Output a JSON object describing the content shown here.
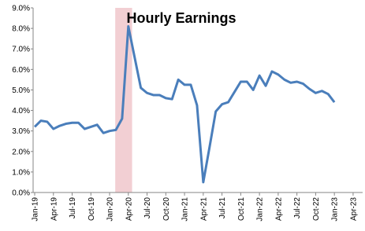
{
  "chart_data": {
    "type": "line",
    "title": "Hourly Earnings",
    "categories": [
      "Jan-19",
      null,
      null,
      "Apr-19",
      null,
      null,
      "Jul-19",
      null,
      null,
      "Oct-19",
      null,
      null,
      "Jan-20",
      null,
      null,
      "Apr-20",
      null,
      null,
      "Jul-20",
      null,
      null,
      "Oct-20",
      null,
      null,
      "Jan-21",
      null,
      null,
      "Apr-21",
      null,
      null,
      "Jul-21",
      null,
      null,
      "Oct-21",
      null,
      null,
      "Jan-22",
      null,
      null,
      "Apr-22",
      null,
      null,
      "Jul-22",
      null,
      null,
      "Oct-22",
      null,
      null,
      "Jan-23",
      null,
      null,
      "Apr-23"
    ],
    "series": [
      {
        "color": "#4a7ebb",
        "values": [
          3.2,
          3.5,
          3.45,
          3.1,
          3.25,
          3.35,
          3.4,
          3.4,
          3.1,
          3.2,
          3.3,
          2.9,
          3.0,
          3.05,
          3.6,
          8.1,
          6.6,
          5.1,
          4.85,
          4.75,
          4.75,
          4.6,
          4.55,
          5.5,
          5.25,
          5.25,
          4.25,
          0.5,
          2.2,
          3.95,
          4.3,
          4.4,
          4.9,
          5.4,
          5.4,
          5.0,
          5.7,
          5.2,
          5.9,
          5.75,
          5.5,
          5.35,
          5.4,
          5.3,
          5.05,
          4.85,
          4.95,
          4.8,
          4.4,
          null,
          null,
          null
        ]
      }
    ],
    "ylim": [
      0,
      9
    ],
    "yticks": [
      {
        "value": 0,
        "label": "0.0%"
      },
      {
        "value": 1,
        "label": "1.0%"
      },
      {
        "value": 2,
        "label": "2.0%"
      },
      {
        "value": 3,
        "label": "3.0%"
      },
      {
        "value": 4,
        "label": "4.0%"
      },
      {
        "value": 5,
        "label": "5.0%"
      },
      {
        "value": 6,
        "label": "6.0%"
      },
      {
        "value": 7,
        "label": "7.0%"
      },
      {
        "value": 8,
        "label": "8.0%"
      },
      {
        "value": 9,
        "label": "9.0%"
      }
    ],
    "grid": false
  }
}
